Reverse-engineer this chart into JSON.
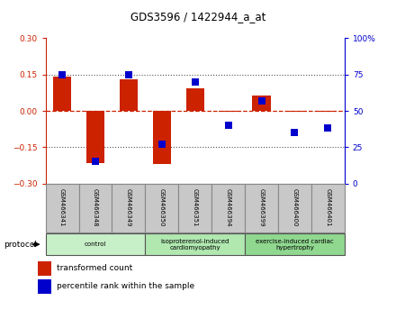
{
  "title": "GDS3596 / 1422944_a_at",
  "samples": [
    "GSM466341",
    "GSM466348",
    "GSM466349",
    "GSM466350",
    "GSM466351",
    "GSM466394",
    "GSM466399",
    "GSM466400",
    "GSM466401"
  ],
  "transformed_counts": [
    0.143,
    -0.215,
    0.13,
    -0.22,
    0.095,
    -0.005,
    0.065,
    -0.005,
    -0.005
  ],
  "percentile_ranks": [
    75,
    15,
    75,
    27,
    70,
    40,
    57,
    35,
    38
  ],
  "groups": [
    {
      "label": "control",
      "indices": [
        0,
        1,
        2
      ],
      "color": "#c8f0c8"
    },
    {
      "label": "isoproterenol-induced\ncardiomyopathy",
      "indices": [
        3,
        4,
        5
      ],
      "color": "#b0e8b0"
    },
    {
      "label": "exercise-induced cardiac\nhypertrophy",
      "indices": [
        6,
        7,
        8
      ],
      "color": "#90d890"
    }
  ],
  "ylim_left": [
    -0.3,
    0.3
  ],
  "ylim_right": [
    0,
    100
  ],
  "yticks_left": [
    -0.3,
    -0.15,
    0,
    0.15,
    0.3
  ],
  "yticks_right": [
    0,
    25,
    50,
    75,
    100
  ],
  "bar_color": "#cc2200",
  "dot_color": "#0000cc",
  "bar_width": 0.55,
  "dot_size": 30,
  "protocol_label": "protocol",
  "legend_bar_label": "transformed count",
  "legend_dot_label": "percentile rank within the sample",
  "sample_bg_color": "#c8c8c8",
  "sample_border_color": "#888888"
}
